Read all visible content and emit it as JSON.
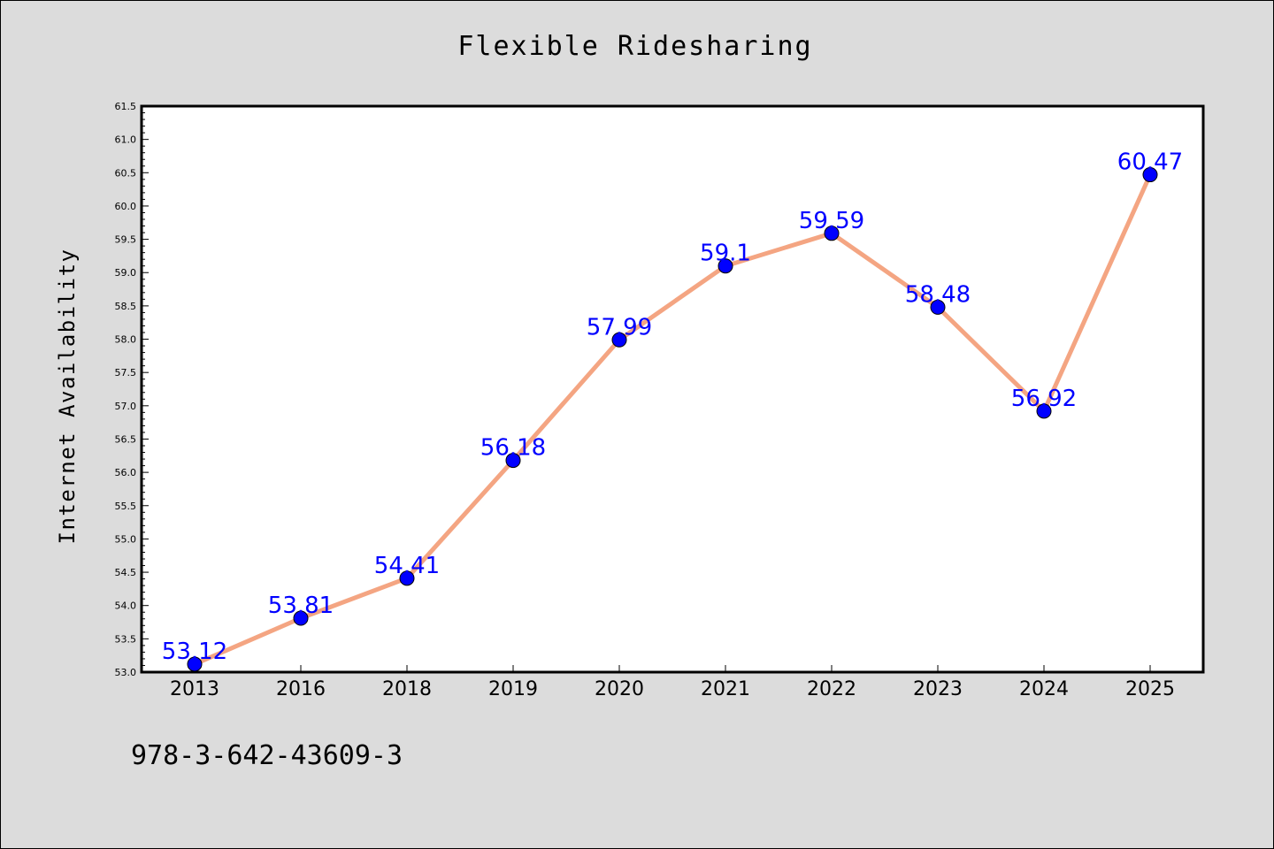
{
  "chart_data": {
    "type": "line",
    "title": "Flexible Ridesharing",
    "xlabel": "",
    "ylabel": "Internet Availability",
    "categories": [
      "2013",
      "2016",
      "2018",
      "2019",
      "2020",
      "2021",
      "2022",
      "2023",
      "2024",
      "2025"
    ],
    "values": [
      53.12,
      53.81,
      54.41,
      56.18,
      57.99,
      59.1,
      59.59,
      58.48,
      56.92,
      60.47
    ],
    "data_labels": [
      "53.12",
      "53.81",
      "54.41",
      "56.18",
      "57.99",
      "59.1",
      "59.59",
      "58.48",
      "56.92",
      "60.47"
    ],
    "ylim": [
      53.0,
      61.5
    ],
    "yticks": [
      "53.0",
      "53.5",
      "54.0",
      "54.5",
      "55.0",
      "55.5",
      "56.0",
      "56.5",
      "57.0",
      "57.5",
      "58.0",
      "58.5",
      "59.0",
      "59.5",
      "60.0",
      "60.5",
      "61.0",
      "61.5"
    ],
    "grid": false,
    "line_color": "#f4a582",
    "marker_color": "#0000ff",
    "label_color": "#0000ff"
  },
  "footer": {
    "text": "978-3-642-43609-3"
  }
}
